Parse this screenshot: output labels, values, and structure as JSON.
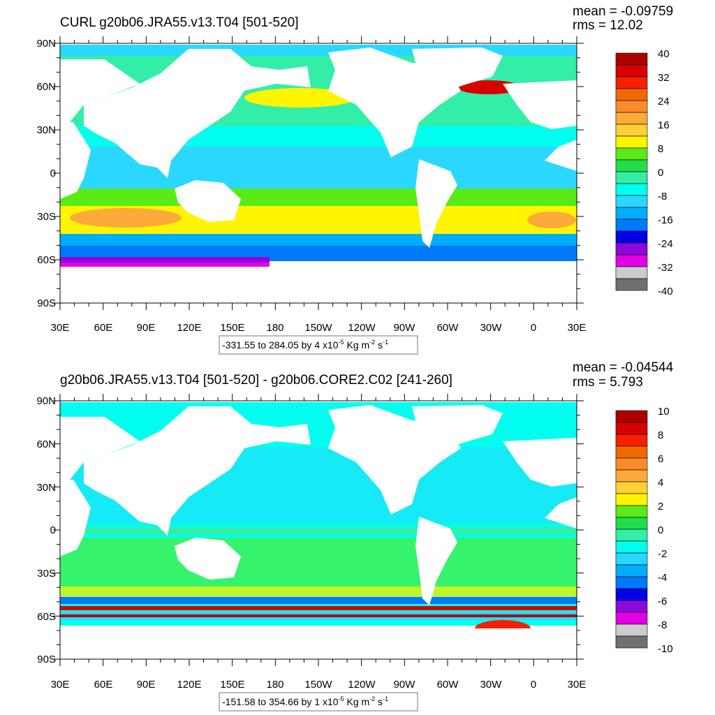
{
  "panels": [
    {
      "title": "CURL g20b06.JRA55.v13.T04 [501-520]",
      "mean": "mean = -0.09759",
      "rms": "rms = 12.02",
      "range_text": "-331.55 to 284.05 by 4 x10",
      "range_exp1": "-5",
      "range_unit": " Kg m",
      "range_exp2": "-2",
      "range_s": " s",
      "range_exp3": "-1",
      "colorbar_labels": [
        "40",
        "32",
        "24",
        "16",
        "8",
        "0",
        "-8",
        "-16",
        "-24",
        "-32",
        "-40"
      ],
      "lat_labels": [
        "90N",
        "60N",
        "30N",
        "0",
        "30S",
        "60S",
        "90S"
      ],
      "lon_labels": [
        "30E",
        "60E",
        "90E",
        "120E",
        "150E",
        "180",
        "150W",
        "120W",
        "90W",
        "60W",
        "30W",
        "0",
        "30E"
      ]
    },
    {
      "title": "g20b06.JRA55.v13.T04 [501-520] - g20b06.CORE2.C02 [241-260]",
      "mean": "mean = -0.04544",
      "rms": "rms = 5.793",
      "range_text": "-151.58 to 354.66 by 1 x10",
      "range_exp1": "-5",
      "range_unit": " Kg m",
      "range_exp2": "-2",
      "range_s": " s",
      "range_exp3": "-1",
      "colorbar_labels": [
        "10",
        "8",
        "6",
        "4",
        "2",
        "0",
        "-2",
        "-4",
        "-6",
        "-8",
        "-10"
      ],
      "lat_labels": [
        "90N",
        "60N",
        "30N",
        "0",
        "30S",
        "60S",
        "90S"
      ],
      "lon_labels": [
        "30E",
        "60E",
        "90E",
        "120E",
        "150E",
        "180",
        "150W",
        "120W",
        "90W",
        "60W",
        "30W",
        "0",
        "30E"
      ]
    }
  ],
  "colors": {
    "palette": [
      "#ac0000",
      "#d80000",
      "#f81f00",
      "#f06a00",
      "#fa8b2b",
      "#fcaa3a",
      "#fdd035",
      "#fff500",
      "#5aeb17",
      "#23dd4c",
      "#32eea7",
      "#00ffee",
      "#2ad8ff",
      "#00aefb",
      "#0079fa",
      "#0000e6",
      "#8d08db",
      "#e400e6",
      "#cccccc",
      "#707070"
    ],
    "land": "#ffffff"
  }
}
